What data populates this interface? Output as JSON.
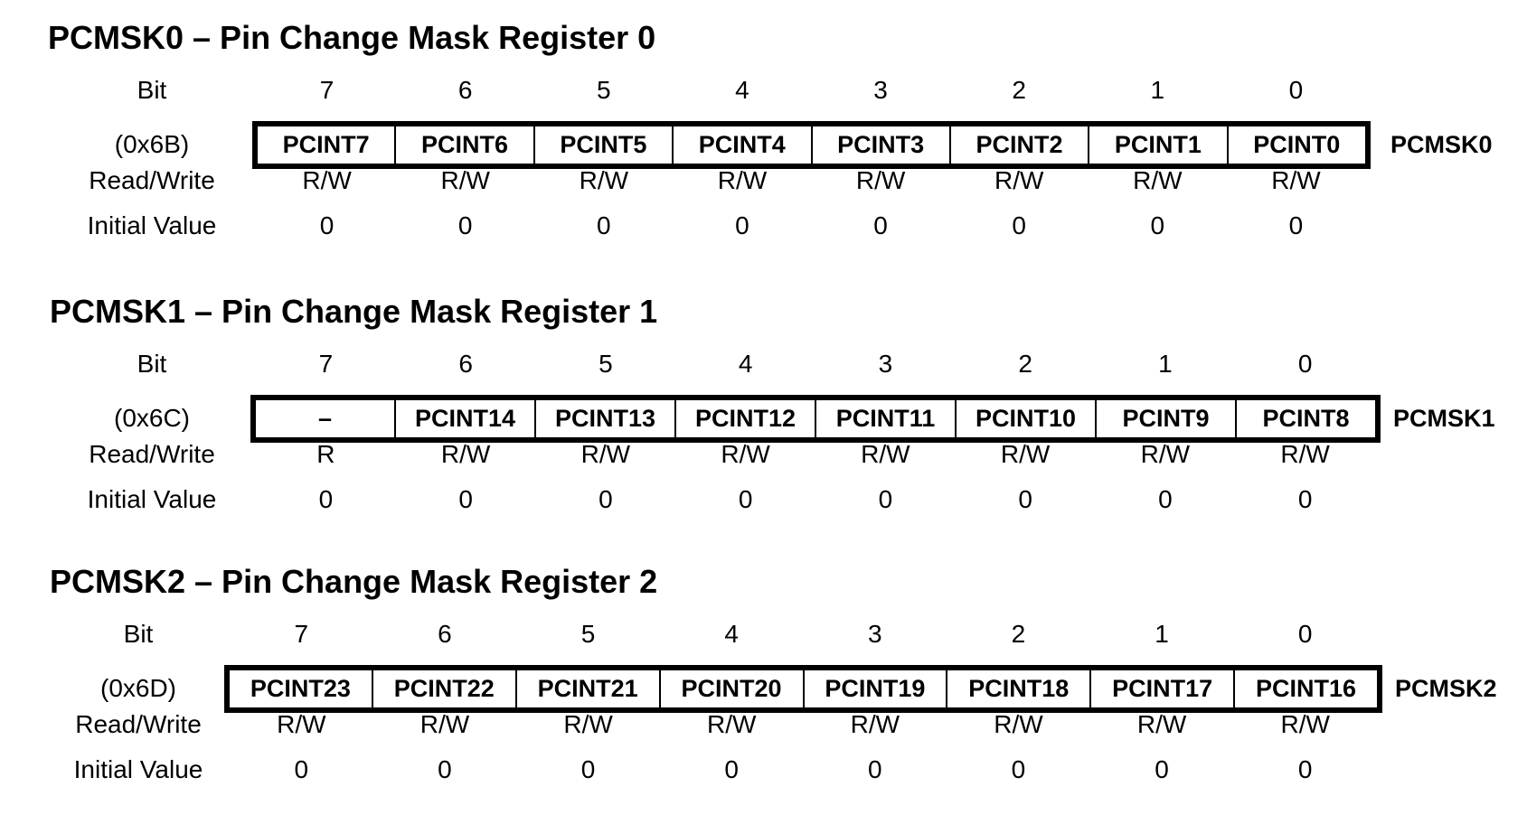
{
  "row_labels": {
    "bit": "Bit",
    "read_write": "Read/Write",
    "initial_value": "Initial Value"
  },
  "registers": [
    {
      "title": "PCMSK0 – Pin Change Mask Register 0",
      "address": "(0x6B)",
      "name": "PCMSK0",
      "bits": [
        {
          "num": "7",
          "field": "PCINT7",
          "rw": "R/W",
          "init": "0"
        },
        {
          "num": "6",
          "field": "PCINT6",
          "rw": "R/W",
          "init": "0"
        },
        {
          "num": "5",
          "field": "PCINT5",
          "rw": "R/W",
          "init": "0"
        },
        {
          "num": "4",
          "field": "PCINT4",
          "rw": "R/W",
          "init": "0"
        },
        {
          "num": "3",
          "field": "PCINT3",
          "rw": "R/W",
          "init": "0"
        },
        {
          "num": "2",
          "field": "PCINT2",
          "rw": "R/W",
          "init": "0"
        },
        {
          "num": "1",
          "field": "PCINT1",
          "rw": "R/W",
          "init": "0"
        },
        {
          "num": "0",
          "field": "PCINT0",
          "rw": "R/W",
          "init": "0"
        }
      ]
    },
    {
      "title": "PCMSK1 – Pin Change Mask Register 1",
      "address": "(0x6C)",
      "name": "PCMSK1",
      "bits": [
        {
          "num": "7",
          "field": "–",
          "rw": "R",
          "init": "0"
        },
        {
          "num": "6",
          "field": "PCINT14",
          "rw": "R/W",
          "init": "0"
        },
        {
          "num": "5",
          "field": "PCINT13",
          "rw": "R/W",
          "init": "0"
        },
        {
          "num": "4",
          "field": "PCINT12",
          "rw": "R/W",
          "init": "0"
        },
        {
          "num": "3",
          "field": "PCINT11",
          "rw": "R/W",
          "init": "0"
        },
        {
          "num": "2",
          "field": "PCINT10",
          "rw": "R/W",
          "init": "0"
        },
        {
          "num": "1",
          "field": "PCINT9",
          "rw": "R/W",
          "init": "0"
        },
        {
          "num": "0",
          "field": "PCINT8",
          "rw": "R/W",
          "init": "0"
        }
      ]
    },
    {
      "title": "PCMSK2 – Pin Change Mask Register 2",
      "address": "(0x6D)",
      "name": "PCMSK2",
      "bits": [
        {
          "num": "7",
          "field": "PCINT23",
          "rw": "R/W",
          "init": "0"
        },
        {
          "num": "6",
          "field": "PCINT22",
          "rw": "R/W",
          "init": "0"
        },
        {
          "num": "5",
          "field": "PCINT21",
          "rw": "R/W",
          "init": "0"
        },
        {
          "num": "4",
          "field": "PCINT20",
          "rw": "R/W",
          "init": "0"
        },
        {
          "num": "3",
          "field": "PCINT19",
          "rw": "R/W",
          "init": "0"
        },
        {
          "num": "2",
          "field": "PCINT18",
          "rw": "R/W",
          "init": "0"
        },
        {
          "num": "1",
          "field": "PCINT17",
          "rw": "R/W",
          "init": "0"
        },
        {
          "num": "0",
          "field": "PCINT16",
          "rw": "R/W",
          "init": "0"
        }
      ]
    }
  ]
}
